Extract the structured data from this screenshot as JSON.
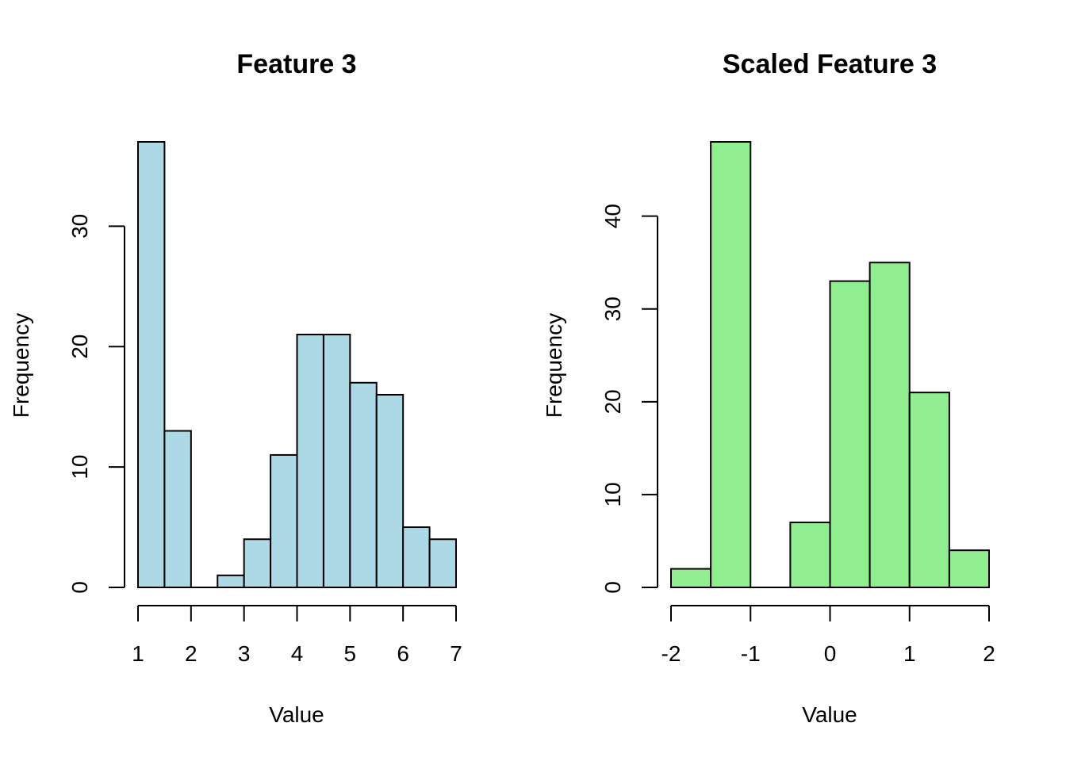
{
  "chart_data": [
    {
      "type": "bar",
      "title": "Feature 3",
      "xlabel": "Value",
      "ylabel": "Frequency",
      "color": "#ADD8E6",
      "bin_edges": [
        1,
        1.5,
        2,
        2.5,
        3,
        3.5,
        4,
        4.5,
        5,
        5.5,
        6,
        6.5,
        7
      ],
      "values": [
        37,
        13,
        0,
        1,
        4,
        11,
        21,
        21,
        17,
        16,
        5,
        4
      ],
      "xlim": [
        1,
        7
      ],
      "ylim": [
        0,
        37
      ],
      "xticks": [
        1,
        2,
        3,
        4,
        5,
        6,
        7
      ],
      "xtick_labels": [
        "1",
        "2",
        "3",
        "4",
        "5",
        "6",
        "7"
      ],
      "yticks": [
        0,
        10,
        20,
        30
      ],
      "ytick_labels": [
        "0",
        "10",
        "20",
        "30"
      ]
    },
    {
      "type": "bar",
      "title": "Scaled Feature 3",
      "xlabel": "Value",
      "ylabel": "Frequency",
      "color": "#90EE90",
      "bin_edges": [
        -2,
        -1.5,
        -1,
        -0.5,
        0,
        0.5,
        1,
        1.5,
        2
      ],
      "values": [
        2,
        48,
        0,
        7,
        33,
        35,
        21,
        4
      ],
      "xlim": [
        -2,
        2
      ],
      "ylim": [
        0,
        48
      ],
      "xticks": [
        -2,
        -1,
        0,
        1,
        2
      ],
      "xtick_labels": [
        "-2",
        "-1",
        "0",
        "1",
        "2"
      ],
      "yticks": [
        0,
        10,
        20,
        30,
        40
      ],
      "ytick_labels": [
        "0",
        "10",
        "20",
        "30",
        "40"
      ]
    }
  ]
}
